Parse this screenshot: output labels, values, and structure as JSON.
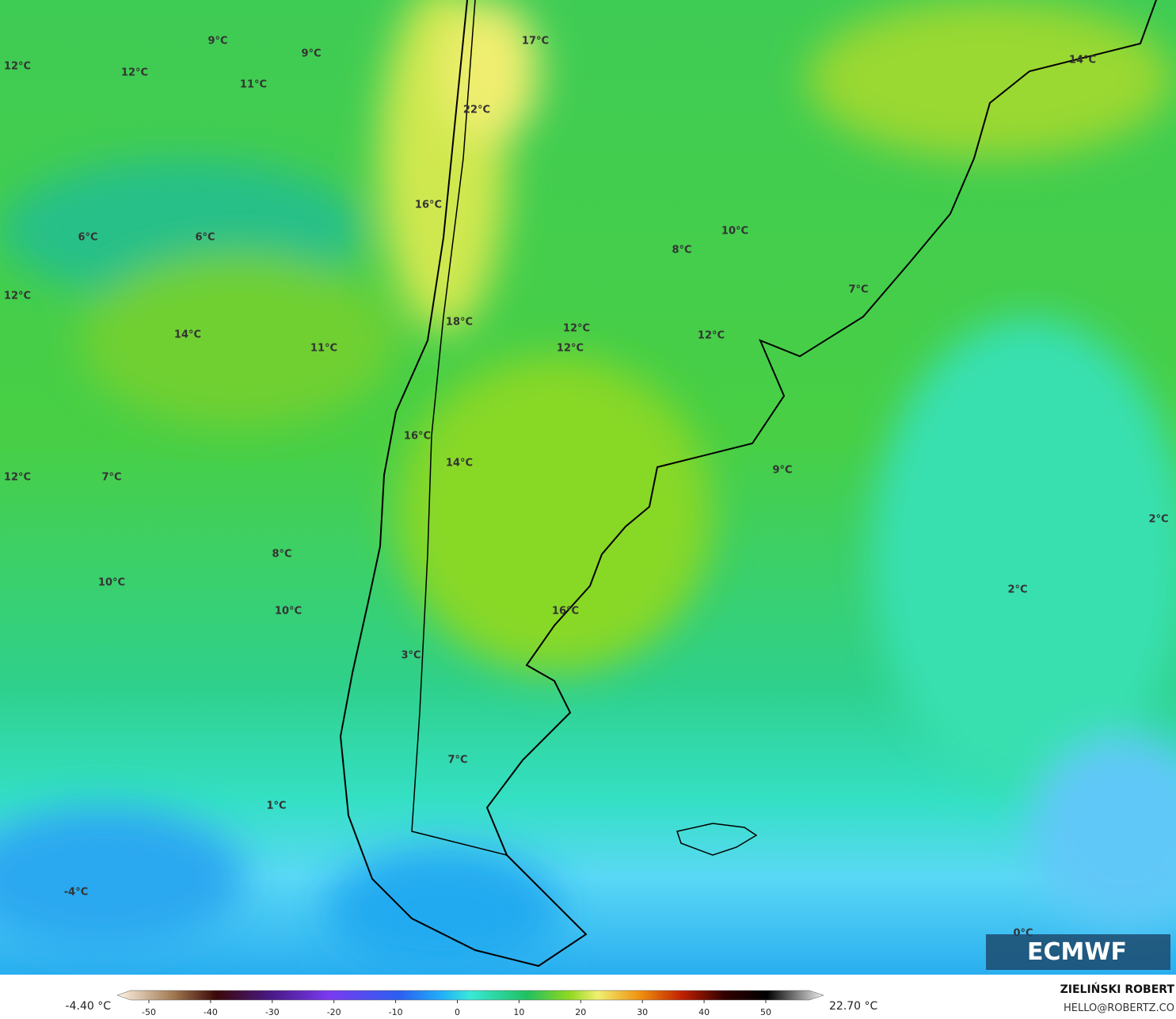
{
  "map": {
    "labels": [
      "9°C",
      "9°C",
      "12°C",
      "12°C",
      "11°C",
      "17°C",
      "14°C",
      "22°C",
      "16°C",
      "6°C",
      "6°C",
      "10°C",
      "8°C",
      "12°C",
      "7°C",
      "18°C",
      "14°C",
      "11°C",
      "12°C",
      "12°C",
      "12°C",
      "16°C",
      "14°C",
      "9°C",
      "12°C",
      "7°C",
      "2°C",
      "8°C",
      "10°C",
      "2°C",
      "10°C",
      "16°C",
      "3°C",
      "7°C",
      "1°C",
      "-4°C",
      "0°C"
    ],
    "logo": "ECMWF"
  },
  "colorbar": {
    "min_label": "-4.40 °C",
    "max_label": "22.70 °C",
    "ticks": [
      -50,
      -40,
      -30,
      -20,
      -10,
      0,
      10,
      20,
      30,
      40,
      50
    ]
  },
  "credit": {
    "author": "ZIELIŃSKI ROBERT",
    "email": "HELLO@ROBERTZ.CO"
  }
}
